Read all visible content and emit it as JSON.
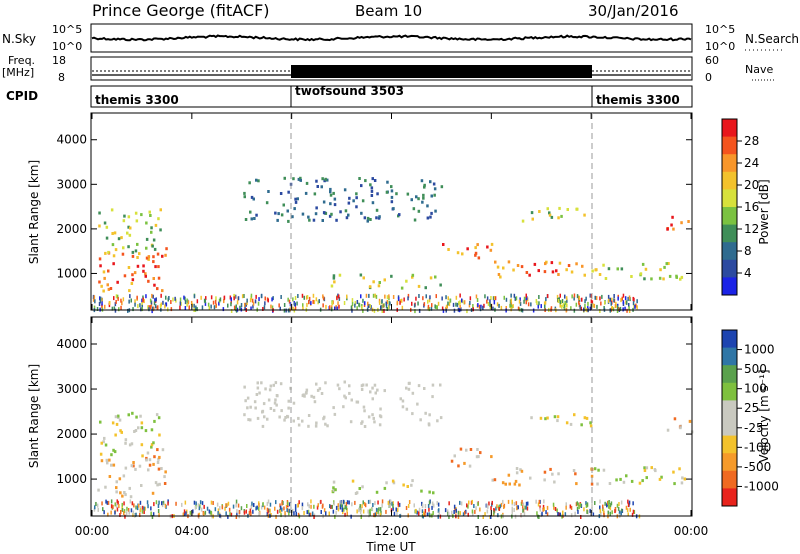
{
  "header": {
    "station": "Prince George (fitACF)",
    "beam": "Beam 10",
    "date": "30/Jan/2016"
  },
  "noise_panel": {
    "left_label": "N.Sky",
    "right_label": "N.Search",
    "y_ticks": [
      "10^5",
      "10^0"
    ]
  },
  "freq_panel": {
    "left_label_1": "Freq.",
    "left_label_2": "[MHz]",
    "left_ticks": [
      "18",
      "8"
    ],
    "right_label": "Nave",
    "right_ticks": [
      "60",
      "0"
    ]
  },
  "cpid_panel": {
    "label": "CPID",
    "segments": [
      {
        "name": "themis 3300",
        "start_h": 0,
        "end_h": 8
      },
      {
        "name": "twofsound 3503",
        "start_h": 8,
        "end_h": 20
      },
      {
        "name": "themis 3300",
        "start_h": 20,
        "end_h": 24
      }
    ]
  },
  "power_panel": {
    "ylabel": "Slant Range [km]",
    "cbar_label": "Power [dB]",
    "cbar_ticks": [
      "28",
      "24",
      "20",
      "16",
      "12",
      "8",
      "4"
    ],
    "cbar_colors": [
      "#e8161c",
      "#f4541e",
      "#f8962a",
      "#f3c22c",
      "#d7e13c",
      "#7bc241",
      "#3f8e58",
      "#2f6b8f",
      "#2c4aa0",
      "#1b23e6"
    ]
  },
  "velocity_panel": {
    "ylabel": "Slant Range [km]",
    "cbar_label": "Velocity [m s⁻¹]",
    "cbar_ticks": [
      "1000",
      "500",
      "100",
      "25",
      "-25",
      "-100",
      "-500",
      "-1000"
    ],
    "cbar_colors": [
      "#1d44b0",
      "#2f76a6",
      "#5aa14d",
      "#7ec03e",
      "#c9c9c0",
      "#c9c9c0",
      "#f3c22c",
      "#f59a2a",
      "#f06a21",
      "#e8231c"
    ]
  },
  "x_axis": {
    "ticks": [
      "00:00",
      "04:00",
      "08:00",
      "12:00",
      "16:00",
      "20:00",
      "00:00"
    ],
    "label": "Time UT"
  },
  "y_axis": {
    "ticks": [
      "4000",
      "3000",
      "2000",
      "1000"
    ]
  },
  "chart_data": {
    "type": "heatmap",
    "x_range_hours": [
      0,
      24
    ],
    "y_range_km": [
      180,
      4600
    ],
    "mode_change_hours": [
      8,
      20
    ],
    "power_regions": [
      {
        "t0": 0.2,
        "t1": 3.0,
        "r0": 600,
        "r1": 1500,
        "level": "high"
      },
      {
        "t0": 0.2,
        "t1": 2.8,
        "r0": 1500,
        "r1": 2500,
        "level": "mid"
      },
      {
        "t0": 2.0,
        "t1": 3.0,
        "r0": 1300,
        "r1": 1700,
        "level": "high"
      },
      {
        "t0": 14.0,
        "t1": 16.0,
        "r0": 1300,
        "r1": 1700,
        "level": "high"
      },
      {
        "t0": 16.0,
        "t1": 20.0,
        "r0": 900,
        "r1": 1300,
        "level": "high"
      },
      {
        "t0": 20.0,
        "t1": 24.0,
        "r0": 900,
        "r1": 1300,
        "level": "mid"
      },
      {
        "t0": 23.0,
        "t1": 24.0,
        "r0": 2000,
        "r1": 2400,
        "level": "high"
      },
      {
        "t0": 17.0,
        "t1": 20.0,
        "r0": 2200,
        "r1": 2500,
        "level": "mid"
      },
      {
        "t0": 6.0,
        "t1": 14.0,
        "r0": 2200,
        "r1": 3200,
        "level": "low"
      },
      {
        "t0": 9.5,
        "t1": 14.0,
        "r0": 700,
        "r1": 1000,
        "level": "mid"
      }
    ]
  }
}
